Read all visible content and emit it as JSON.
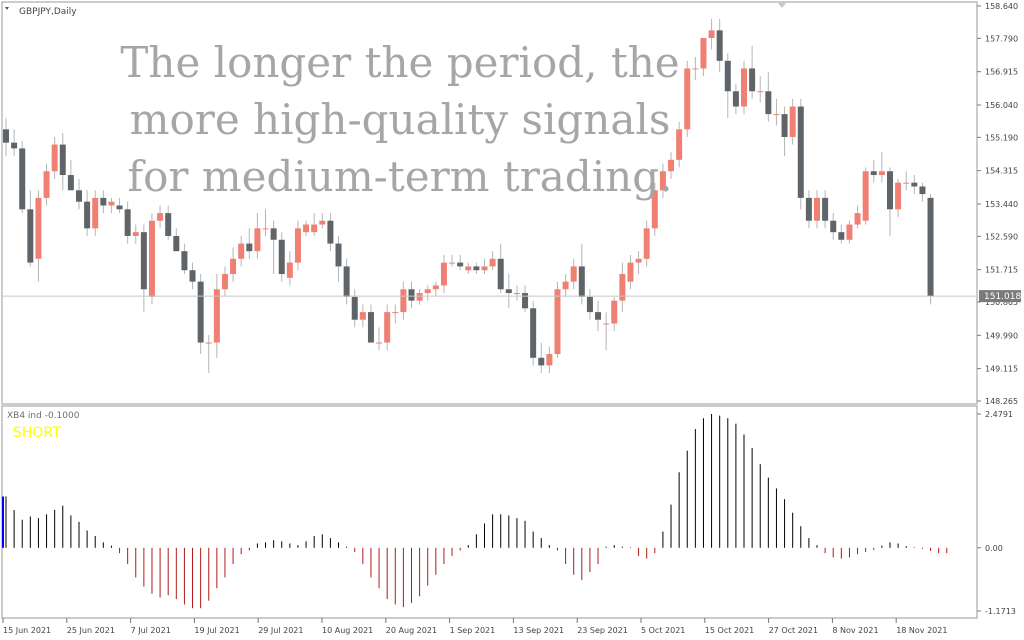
{
  "main": {
    "symbol_label": "GBPJPY,Daily",
    "price_ticks": [
      "158.640",
      "157.790",
      "156.915",
      "156.040",
      "155.190",
      "154.315",
      "153.440",
      "152.590",
      "151.715",
      "150.865",
      "149.990",
      "149.115",
      "148.265"
    ],
    "current_price": "151.018",
    "overlay_lines": [
      "The longer the period, the",
      "more high-quality signals",
      "for medium-term trading."
    ]
  },
  "indicator": {
    "label": "XB4 ind -0.1000",
    "signal": "SHORT",
    "ticks": [
      "2.4791",
      "0.00",
      "-1.1713"
    ]
  },
  "x_labels": [
    "15 Jun 2021",
    "25 Jun 2021",
    "7 Jul 2021",
    "19 Jul 2021",
    "29 Jul 2021",
    "10 Aug 2021",
    "20 Aug 2021",
    "1 Sep 2021",
    "13 Sep 2021",
    "23 Sep 2021",
    "5 Oct 2021",
    "15 Oct 2021",
    "27 Oct 2021",
    "8 Nov 2021",
    "18 Nov 2021"
  ],
  "colors": {
    "bull": "#f08073",
    "bear": "#5f6468",
    "osc_positive": "#000000",
    "osc_negative": "#b01818",
    "signal_text": "#ffff00",
    "label_text": "#6e6e6e"
  },
  "chart_data": [
    {
      "type": "candlestick",
      "title": "GBPJPY,Daily",
      "ylim": [
        148.265,
        158.64
      ],
      "candles": [
        {
          "o": 155.4,
          "h": 155.7,
          "l": 154.7,
          "c": 155.05
        },
        {
          "o": 155.05,
          "h": 155.4,
          "l": 154.7,
          "c": 154.9
        },
        {
          "o": 154.9,
          "h": 155.1,
          "l": 153.2,
          "c": 153.3
        },
        {
          "o": 153.3,
          "h": 153.8,
          "l": 151.8,
          "c": 151.9
        },
        {
          "o": 152.0,
          "h": 153.8,
          "l": 151.4,
          "c": 153.6
        },
        {
          "o": 153.6,
          "h": 154.5,
          "l": 153.4,
          "c": 154.3
        },
        {
          "o": 154.3,
          "h": 155.2,
          "l": 154.1,
          "c": 155.0
        },
        {
          "o": 155.0,
          "h": 155.3,
          "l": 153.8,
          "c": 154.2
        },
        {
          "o": 154.2,
          "h": 154.6,
          "l": 153.8,
          "c": 153.8
        },
        {
          "o": 153.8,
          "h": 154.1,
          "l": 153.3,
          "c": 153.5
        },
        {
          "o": 153.5,
          "h": 153.8,
          "l": 152.6,
          "c": 152.8
        },
        {
          "o": 152.8,
          "h": 153.8,
          "l": 152.6,
          "c": 153.6
        },
        {
          "o": 153.6,
          "h": 153.8,
          "l": 153.2,
          "c": 153.4
        },
        {
          "o": 153.4,
          "h": 153.6,
          "l": 153.2,
          "c": 153.5
        },
        {
          "o": 153.4,
          "h": 153.6,
          "l": 153.2,
          "c": 153.3
        },
        {
          "o": 153.3,
          "h": 153.5,
          "l": 152.4,
          "c": 152.6
        },
        {
          "o": 152.6,
          "h": 152.9,
          "l": 152.4,
          "c": 152.7
        },
        {
          "o": 152.7,
          "h": 152.9,
          "l": 150.6,
          "c": 151.2
        },
        {
          "o": 151.0,
          "h": 153.2,
          "l": 150.8,
          "c": 153.0
        },
        {
          "o": 153.0,
          "h": 153.4,
          "l": 152.8,
          "c": 153.2
        },
        {
          "o": 153.2,
          "h": 153.4,
          "l": 152.5,
          "c": 152.6
        },
        {
          "o": 152.6,
          "h": 152.8,
          "l": 152.2,
          "c": 152.2
        },
        {
          "o": 152.2,
          "h": 152.4,
          "l": 151.6,
          "c": 151.7
        },
        {
          "o": 151.7,
          "h": 151.9,
          "l": 151.2,
          "c": 151.4
        },
        {
          "o": 151.4,
          "h": 151.6,
          "l": 149.5,
          "c": 149.8
        },
        {
          "o": 149.8,
          "h": 150.0,
          "l": 149.0,
          "c": 149.8
        },
        {
          "o": 149.8,
          "h": 151.6,
          "l": 149.4,
          "c": 151.2
        },
        {
          "o": 151.2,
          "h": 151.8,
          "l": 151.0,
          "c": 151.6
        },
        {
          "o": 151.6,
          "h": 152.3,
          "l": 151.4,
          "c": 152.0
        },
        {
          "o": 152.0,
          "h": 152.6,
          "l": 151.8,
          "c": 152.4
        },
        {
          "o": 152.4,
          "h": 152.8,
          "l": 152.0,
          "c": 152.2
        },
        {
          "o": 152.2,
          "h": 153.2,
          "l": 152.0,
          "c": 152.8
        },
        {
          "o": 152.8,
          "h": 153.3,
          "l": 152.6,
          "c": 152.8
        },
        {
          "o": 152.8,
          "h": 153.0,
          "l": 151.6,
          "c": 152.5
        },
        {
          "o": 152.5,
          "h": 152.7,
          "l": 151.4,
          "c": 151.6
        },
        {
          "o": 151.5,
          "h": 152.2,
          "l": 151.3,
          "c": 151.9
        },
        {
          "o": 151.9,
          "h": 153.0,
          "l": 151.7,
          "c": 152.8
        },
        {
          "o": 152.7,
          "h": 153.0,
          "l": 152.6,
          "c": 152.9
        },
        {
          "o": 152.7,
          "h": 153.2,
          "l": 152.6,
          "c": 152.9
        },
        {
          "o": 152.9,
          "h": 153.2,
          "l": 152.8,
          "c": 153.0
        },
        {
          "o": 153.0,
          "h": 153.2,
          "l": 152.2,
          "c": 152.4
        },
        {
          "o": 152.4,
          "h": 152.6,
          "l": 151.4,
          "c": 151.8
        },
        {
          "o": 151.8,
          "h": 152.0,
          "l": 150.8,
          "c": 151.0
        },
        {
          "o": 151.0,
          "h": 151.2,
          "l": 150.2,
          "c": 150.4
        },
        {
          "o": 150.4,
          "h": 150.8,
          "l": 150.2,
          "c": 150.6
        },
        {
          "o": 150.6,
          "h": 150.8,
          "l": 149.8,
          "c": 149.8
        },
        {
          "o": 149.8,
          "h": 150.2,
          "l": 149.6,
          "c": 149.8
        },
        {
          "o": 149.8,
          "h": 150.8,
          "l": 149.6,
          "c": 150.6
        },
        {
          "o": 150.6,
          "h": 150.8,
          "l": 150.3,
          "c": 150.6
        },
        {
          "o": 150.6,
          "h": 151.4,
          "l": 150.4,
          "c": 151.2
        },
        {
          "o": 151.2,
          "h": 151.4,
          "l": 150.7,
          "c": 150.9
        },
        {
          "o": 150.9,
          "h": 151.2,
          "l": 150.8,
          "c": 151.1
        },
        {
          "o": 151.1,
          "h": 151.3,
          "l": 150.9,
          "c": 151.2
        },
        {
          "o": 151.2,
          "h": 151.4,
          "l": 151.0,
          "c": 151.3
        },
        {
          "o": 151.3,
          "h": 152.1,
          "l": 151.1,
          "c": 151.9
        },
        {
          "o": 151.9,
          "h": 152.1,
          "l": 151.8,
          "c": 151.9
        },
        {
          "o": 151.9,
          "h": 152.1,
          "l": 151.7,
          "c": 151.8
        },
        {
          "o": 151.7,
          "h": 151.9,
          "l": 151.6,
          "c": 151.8
        },
        {
          "o": 151.8,
          "h": 151.9,
          "l": 151.6,
          "c": 151.7
        },
        {
          "o": 151.7,
          "h": 152.0,
          "l": 151.6,
          "c": 151.8
        },
        {
          "o": 151.8,
          "h": 152.2,
          "l": 151.7,
          "c": 152.0
        },
        {
          "o": 152.0,
          "h": 152.4,
          "l": 151.1,
          "c": 151.2
        },
        {
          "o": 151.2,
          "h": 151.6,
          "l": 150.7,
          "c": 151.1
        },
        {
          "o": 151.1,
          "h": 151.3,
          "l": 150.9,
          "c": 151.1
        },
        {
          "o": 151.1,
          "h": 151.3,
          "l": 150.6,
          "c": 150.7
        },
        {
          "o": 150.7,
          "h": 150.9,
          "l": 149.2,
          "c": 149.4
        },
        {
          "o": 149.4,
          "h": 149.8,
          "l": 149.0,
          "c": 149.2
        },
        {
          "o": 149.2,
          "h": 149.7,
          "l": 149.0,
          "c": 149.5
        },
        {
          "o": 149.5,
          "h": 151.4,
          "l": 149.4,
          "c": 151.2
        },
        {
          "o": 151.2,
          "h": 151.6,
          "l": 151.0,
          "c": 151.4
        },
        {
          "o": 151.4,
          "h": 152.0,
          "l": 151.2,
          "c": 151.8
        },
        {
          "o": 151.8,
          "h": 152.4,
          "l": 150.8,
          "c": 151.0
        },
        {
          "o": 151.0,
          "h": 151.2,
          "l": 150.4,
          "c": 150.6
        },
        {
          "o": 150.6,
          "h": 150.9,
          "l": 150.1,
          "c": 150.4
        },
        {
          "o": 150.3,
          "h": 150.6,
          "l": 149.6,
          "c": 150.3
        },
        {
          "o": 150.3,
          "h": 151.0,
          "l": 150.1,
          "c": 150.9
        },
        {
          "o": 150.9,
          "h": 151.9,
          "l": 150.6,
          "c": 151.6
        },
        {
          "o": 151.4,
          "h": 152.1,
          "l": 151.2,
          "c": 151.9
        },
        {
          "o": 151.9,
          "h": 152.2,
          "l": 151.6,
          "c": 152.0
        },
        {
          "o": 152.0,
          "h": 153.0,
          "l": 151.8,
          "c": 152.8
        },
        {
          "o": 152.8,
          "h": 154.0,
          "l": 152.6,
          "c": 153.8
        },
        {
          "o": 153.8,
          "h": 154.5,
          "l": 153.6,
          "c": 154.3
        },
        {
          "o": 154.3,
          "h": 154.8,
          "l": 154.1,
          "c": 154.6
        },
        {
          "o": 154.6,
          "h": 155.6,
          "l": 154.4,
          "c": 155.4
        },
        {
          "o": 155.4,
          "h": 157.2,
          "l": 155.2,
          "c": 157.0
        },
        {
          "o": 157.0,
          "h": 157.3,
          "l": 156.7,
          "c": 157.0
        },
        {
          "o": 157.0,
          "h": 157.8,
          "l": 156.8,
          "c": 157.8
        },
        {
          "o": 157.8,
          "h": 158.3,
          "l": 157.5,
          "c": 158.0
        },
        {
          "o": 158.0,
          "h": 158.3,
          "l": 156.9,
          "c": 157.2
        },
        {
          "o": 157.2,
          "h": 157.4,
          "l": 155.7,
          "c": 156.4
        },
        {
          "o": 156.4,
          "h": 156.6,
          "l": 155.8,
          "c": 156.0
        },
        {
          "o": 156.0,
          "h": 157.2,
          "l": 155.8,
          "c": 157.0
        },
        {
          "o": 157.0,
          "h": 157.6,
          "l": 156.2,
          "c": 156.4
        },
        {
          "o": 156.4,
          "h": 156.8,
          "l": 156.1,
          "c": 156.4
        },
        {
          "o": 156.4,
          "h": 156.9,
          "l": 155.6,
          "c": 155.8
        },
        {
          "o": 155.8,
          "h": 156.2,
          "l": 155.5,
          "c": 155.8
        },
        {
          "o": 155.8,
          "h": 156.0,
          "l": 154.7,
          "c": 155.2
        },
        {
          "o": 155.2,
          "h": 156.2,
          "l": 155.0,
          "c": 156.0
        },
        {
          "o": 156.0,
          "h": 156.2,
          "l": 153.3,
          "c": 153.6
        },
        {
          "o": 153.6,
          "h": 153.8,
          "l": 152.8,
          "c": 153.0
        },
        {
          "o": 153.0,
          "h": 153.8,
          "l": 152.8,
          "c": 153.6
        },
        {
          "o": 153.6,
          "h": 153.8,
          "l": 152.8,
          "c": 153.0
        },
        {
          "o": 153.0,
          "h": 153.2,
          "l": 152.5,
          "c": 152.7
        },
        {
          "o": 152.7,
          "h": 152.9,
          "l": 152.4,
          "c": 152.5
        },
        {
          "o": 152.5,
          "h": 153.0,
          "l": 152.4,
          "c": 152.9
        },
        {
          "o": 152.9,
          "h": 153.4,
          "l": 152.8,
          "c": 153.2
        },
        {
          "o": 153.0,
          "h": 154.4,
          "l": 152.9,
          "c": 154.3
        },
        {
          "o": 154.3,
          "h": 154.6,
          "l": 154.0,
          "c": 154.2
        },
        {
          "o": 154.2,
          "h": 154.8,
          "l": 154.0,
          "c": 154.3
        },
        {
          "o": 154.3,
          "h": 154.4,
          "l": 152.6,
          "c": 153.3
        },
        {
          "o": 153.3,
          "h": 154.1,
          "l": 153.1,
          "c": 154.0
        },
        {
          "o": 154.0,
          "h": 154.3,
          "l": 153.8,
          "c": 154.0
        },
        {
          "o": 154.0,
          "h": 154.2,
          "l": 153.7,
          "c": 153.9
        },
        {
          "o": 153.9,
          "h": 154.0,
          "l": 153.5,
          "c": 153.7
        },
        {
          "o": 153.6,
          "h": 153.7,
          "l": 150.8,
          "c": 151.02
        }
      ]
    },
    {
      "type": "bar",
      "title": "XB4 ind -0.1000",
      "ylim": [
        -1.1713,
        2.4791
      ],
      "values": [
        0.95,
        0.7,
        0.52,
        0.58,
        0.55,
        0.62,
        0.7,
        0.78,
        0.6,
        0.48,
        0.32,
        0.22,
        0.1,
        0.04,
        -0.1,
        -0.3,
        -0.55,
        -0.72,
        -0.85,
        -0.92,
        -0.88,
        -0.95,
        -1.05,
        -1.12,
        -1.12,
        -0.98,
        -0.75,
        -0.55,
        -0.3,
        -0.12,
        -0.05,
        0.08,
        0.1,
        0.14,
        0.12,
        0.08,
        0.05,
        0.12,
        0.22,
        0.25,
        0.18,
        0.1,
        0.02,
        -0.08,
        -0.3,
        -0.55,
        -0.75,
        -0.95,
        -1.05,
        -1.1,
        -1.02,
        -0.9,
        -0.7,
        -0.5,
        -0.3,
        -0.15,
        -0.05,
        0.05,
        0.25,
        0.45,
        0.62,
        0.62,
        0.6,
        0.55,
        0.5,
        0.3,
        0.18,
        0.05,
        -0.05,
        -0.3,
        -0.5,
        -0.6,
        -0.45,
        -0.3,
        0.02,
        0.05,
        0.02,
        0.01,
        -0.15,
        -0.2,
        -0.1,
        0.3,
        0.8,
        1.4,
        1.8,
        2.2,
        2.4,
        2.48,
        2.45,
        2.4,
        2.3,
        2.1,
        1.85,
        1.55,
        1.3,
        1.1,
        0.9,
        0.65,
        0.4,
        0.18,
        0.05,
        -0.1,
        -0.18,
        -0.2,
        -0.18,
        -0.12,
        -0.08,
        -0.04,
        0.04,
        0.1,
        0.08,
        0.03,
        0.01,
        -0.02,
        -0.06,
        -0.1,
        -0.1
      ]
    }
  ]
}
